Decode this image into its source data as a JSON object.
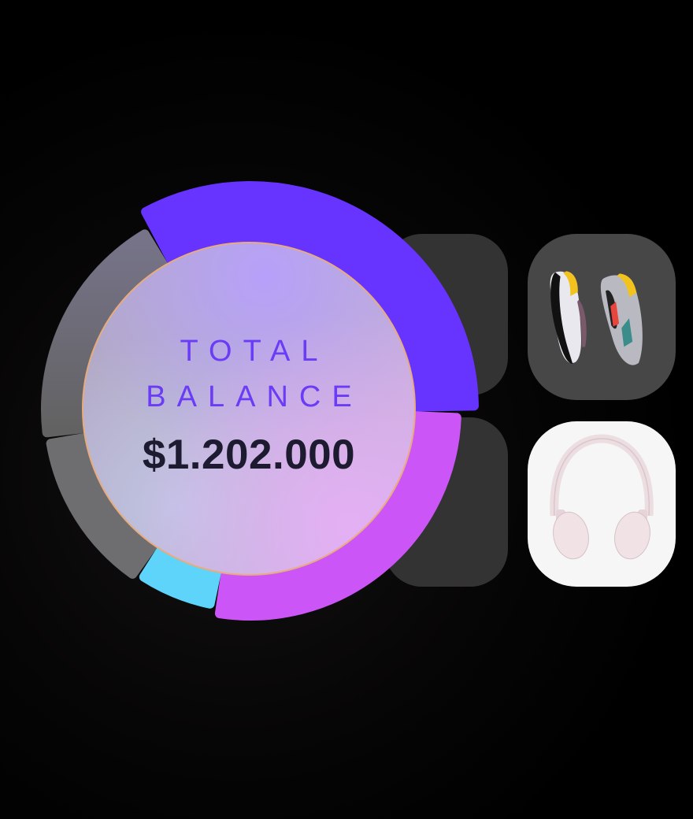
{
  "balance": {
    "label_line1": "TOTAL",
    "label_line2": "BALANCE",
    "amount": "$1.202.000"
  },
  "products": [
    {
      "name": "sneakers",
      "icon": "sneakers-image",
      "tile_color": "#474747"
    },
    {
      "name": "headphones",
      "icon": "headphones-image",
      "tile_color": "#f6f6f6"
    }
  ],
  "chart_data": {
    "type": "pie",
    "variant": "donut",
    "title": "",
    "segments": [
      {
        "share": 34,
        "color": "#6633ff"
      },
      {
        "share": 28,
        "color": "#cc55f8"
      },
      {
        "share": 6,
        "color": "#5fd4fa"
      },
      {
        "share": 13,
        "color": "#6e6e70"
      },
      {
        "share": 19,
        "color": "#6a6a72"
      }
    ],
    "center_label": "TOTAL BALANCE",
    "center_value": "$1.202.000"
  }
}
